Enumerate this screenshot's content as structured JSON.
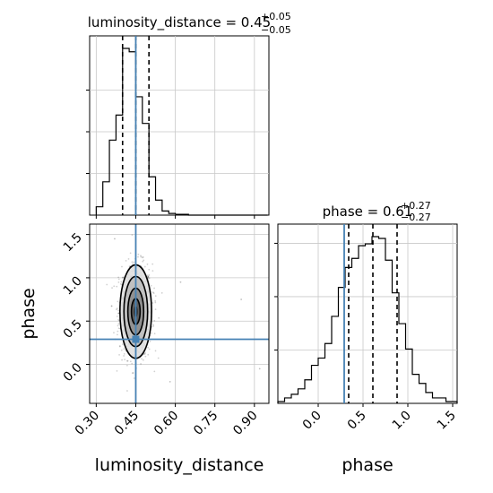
{
  "chart_data": {
    "type": "corner",
    "parameters": [
      "luminosity_distance",
      "phase"
    ],
    "truths": {
      "luminosity_distance": 0.45,
      "phase": 0.29
    },
    "panels": {
      "luminosity_distance": {
        "type": "histogram",
        "title_lhs": "luminosity_distance = 0.45",
        "title_sup": "+0.05",
        "title_sub": "−0.05",
        "median": 0.45,
        "quantiles": [
          0.4,
          0.45,
          0.5
        ],
        "xlim": [
          0.275,
          0.955
        ],
        "bin_edges": [
          0.3,
          0.325,
          0.35,
          0.375,
          0.4,
          0.425,
          0.45,
          0.475,
          0.5,
          0.525,
          0.55,
          0.575,
          0.6,
          0.625,
          0.65,
          0.675,
          0.7,
          0.725,
          0.75,
          0.775,
          0.8,
          0.825,
          0.85,
          0.875,
          0.9,
          0.925,
          0.95
        ],
        "counts": [
          0.05,
          0.2,
          0.45,
          0.6,
          1.0,
          0.98,
          0.71,
          0.55,
          0.23,
          0.09,
          0.025,
          0.01,
          0.005,
          0.005,
          0,
          0,
          0,
          0,
          0,
          0,
          0,
          0,
          0,
          0,
          0,
          0
        ]
      },
      "phase": {
        "type": "histogram",
        "title_lhs": "phase = 0.61",
        "title_sup": "+0.27",
        "title_sub": "−0.27",
        "median": 0.61,
        "quantiles": [
          0.34,
          0.61,
          0.88
        ],
        "xlim": [
          -0.45,
          1.55
        ],
        "xticks": [
          "0.0",
          "0.5",
          "1.0",
          "1.5"
        ],
        "xticks_values": [
          0.0,
          0.5,
          1.0,
          1.5
        ],
        "xlabel": "phase",
        "bin_edges": [
          -0.45,
          -0.375,
          -0.3,
          -0.225,
          -0.15,
          -0.075,
          0.0,
          0.075,
          0.15,
          0.225,
          0.3,
          0.375,
          0.45,
          0.525,
          0.6,
          0.675,
          0.75,
          0.825,
          0.9,
          0.975,
          1.05,
          1.125,
          1.2,
          1.275,
          1.35,
          1.425,
          1.5,
          1.55
        ],
        "counts": [
          0.01,
          0.03,
          0.05,
          0.08,
          0.13,
          0.21,
          0.25,
          0.33,
          0.48,
          0.64,
          0.75,
          0.8,
          0.87,
          0.88,
          0.92,
          0.91,
          0.79,
          0.61,
          0.44,
          0.3,
          0.16,
          0.11,
          0.06,
          0.03,
          0.03,
          0.01,
          0.01
        ]
      },
      "joint": {
        "type": "2d-density",
        "xlim": [
          0.275,
          0.955
        ],
        "ylim": [
          -0.45,
          1.62
        ],
        "xticks": [
          "0.30",
          "0.45",
          "0.60",
          "0.75",
          "0.90"
        ],
        "xticks_values": [
          0.3,
          0.45,
          0.6,
          0.75,
          0.9
        ],
        "yticks": [
          "0.0",
          "0.5",
          "1.0",
          "1.5"
        ],
        "yticks_values": [
          0.0,
          0.5,
          1.0,
          1.5
        ],
        "xlabel": "luminosity_distance",
        "ylabel": "phase",
        "center": [
          0.45,
          0.61
        ],
        "spread": [
          0.03,
          0.27
        ]
      }
    },
    "colors": {
      "truth": "#4682b4",
      "lines": "#000000",
      "grid": "#c8c8c8",
      "density": "#555555"
    },
    "grid": true
  }
}
